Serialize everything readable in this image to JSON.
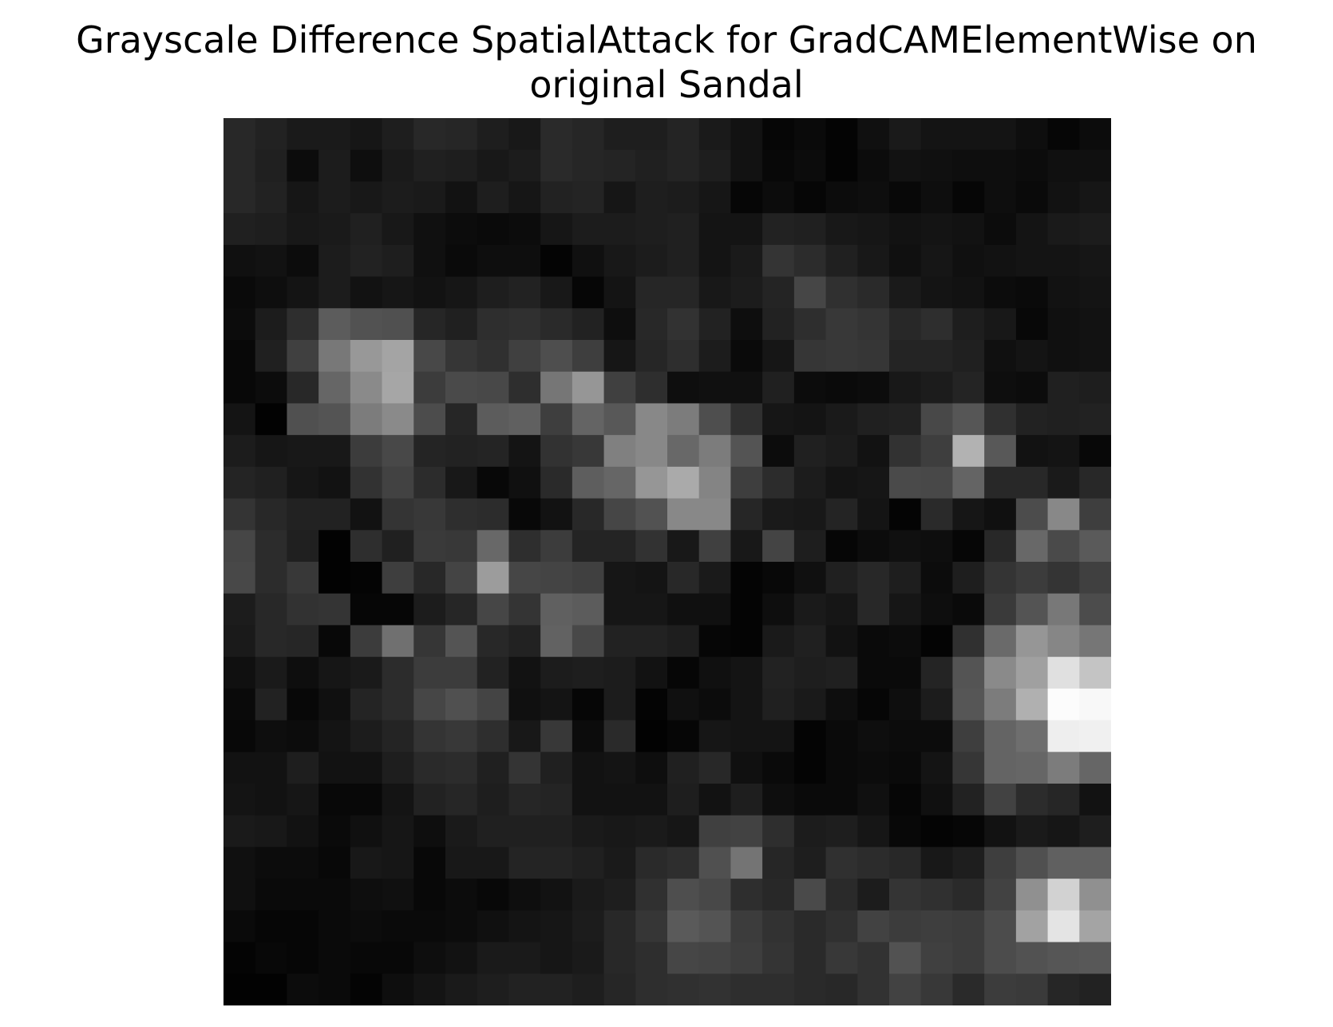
{
  "chart_data": {
    "type": "heatmap",
    "title_lines": [
      "Grayscale Difference SpatialAttack for GradCAMElementWise on",
      "original Sandal"
    ],
    "colormap": "gray",
    "value_range": [
      0,
      255
    ],
    "axes_visible": false,
    "rows": 28,
    "cols": 28,
    "values": [
      [
        40,
        34,
        26,
        26,
        22,
        30,
        40,
        38,
        30,
        24,
        42,
        38,
        30,
        30,
        36,
        26,
        18,
        6,
        10,
        4,
        16,
        26,
        20,
        20,
        20,
        14,
        6,
        12
      ],
      [
        40,
        32,
        12,
        28,
        14,
        26,
        32,
        30,
        24,
        28,
        42,
        38,
        36,
        32,
        36,
        30,
        18,
        8,
        12,
        4,
        12,
        18,
        16,
        14,
        14,
        12,
        16,
        16
      ],
      [
        40,
        34,
        22,
        28,
        24,
        28,
        26,
        18,
        30,
        22,
        34,
        36,
        22,
        30,
        28,
        22,
        6,
        12,
        6,
        12,
        14,
        8,
        14,
        6,
        14,
        10,
        18,
        22
      ],
      [
        32,
        30,
        24,
        26,
        32,
        24,
        16,
        12,
        10,
        12,
        22,
        28,
        28,
        30,
        32,
        20,
        20,
        34,
        32,
        24,
        22,
        18,
        20,
        18,
        12,
        20,
        26,
        28
      ],
      [
        16,
        18,
        12,
        28,
        34,
        30,
        16,
        10,
        14,
        14,
        4,
        16,
        24,
        28,
        32,
        20,
        26,
        52,
        44,
        32,
        24,
        16,
        22,
        16,
        18,
        20,
        20,
        22
      ],
      [
        10,
        14,
        20,
        28,
        18,
        22,
        18,
        22,
        30,
        34,
        24,
        6,
        20,
        38,
        38,
        24,
        28,
        36,
        70,
        48,
        42,
        26,
        20,
        18,
        12,
        10,
        18,
        20
      ],
      [
        12,
        28,
        46,
        92,
        82,
        80,
        38,
        32,
        46,
        48,
        42,
        34,
        14,
        40,
        50,
        34,
        14,
        34,
        46,
        56,
        52,
        40,
        46,
        30,
        24,
        8,
        16,
        18
      ],
      [
        8,
        32,
        64,
        120,
        152,
        164,
        72,
        54,
        48,
        64,
        78,
        62,
        22,
        38,
        46,
        28,
        10,
        22,
        54,
        56,
        54,
        36,
        36,
        32,
        16,
        20,
        16,
        18
      ],
      [
        8,
        12,
        40,
        102,
        138,
        166,
        60,
        74,
        72,
        46,
        118,
        150,
        64,
        46,
        14,
        16,
        16,
        32,
        12,
        10,
        12,
        24,
        28,
        36,
        14,
        12,
        32,
        30
      ],
      [
        20,
        2,
        80,
        84,
        124,
        138,
        76,
        38,
        92,
        96,
        62,
        100,
        88,
        136,
        124,
        78,
        48,
        22,
        20,
        26,
        32,
        34,
        72,
        86,
        48,
        34,
        32,
        34
      ],
      [
        28,
        22,
        24,
        24,
        60,
        72,
        36,
        34,
        36,
        20,
        50,
        56,
        128,
        136,
        104,
        124,
        84,
        12,
        32,
        28,
        18,
        50,
        62,
        178,
        88,
        18,
        20,
        8
      ],
      [
        36,
        32,
        22,
        18,
        50,
        66,
        44,
        24,
        8,
        16,
        42,
        94,
        102,
        150,
        170,
        132,
        62,
        44,
        28,
        20,
        22,
        74,
        72,
        100,
        40,
        40,
        26,
        40
      ],
      [
        52,
        40,
        34,
        34,
        18,
        52,
        56,
        46,
        44,
        8,
        18,
        40,
        70,
        82,
        136,
        136,
        38,
        26,
        24,
        36,
        20,
        4,
        42,
        22,
        16,
        76,
        136,
        62
      ],
      [
        70,
        44,
        32,
        2,
        46,
        32,
        58,
        56,
        104,
        46,
        60,
        36,
        36,
        50,
        24,
        64,
        24,
        68,
        30,
        6,
        12,
        16,
        14,
        6,
        40,
        104,
        74,
        90
      ],
      [
        72,
        44,
        56,
        2,
        4,
        62,
        40,
        68,
        156,
        70,
        68,
        64,
        22,
        20,
        40,
        26,
        4,
        8,
        16,
        32,
        40,
        30,
        12,
        30,
        52,
        60,
        52,
        64
      ],
      [
        28,
        40,
        50,
        52,
        6,
        6,
        28,
        38,
        70,
        52,
        96,
        92,
        22,
        22,
        16,
        16,
        4,
        14,
        26,
        22,
        40,
        22,
        14,
        10,
        58,
        84,
        120,
        76
      ],
      [
        26,
        40,
        38,
        8,
        60,
        112,
        54,
        84,
        40,
        34,
        98,
        72,
        34,
        34,
        30,
        6,
        4,
        26,
        32,
        18,
        10,
        12,
        4,
        48,
        106,
        150,
        134,
        118
      ],
      [
        16,
        26,
        14,
        22,
        26,
        44,
        60,
        60,
        34,
        18,
        28,
        30,
        28,
        18,
        6,
        16,
        20,
        34,
        30,
        32,
        10,
        10,
        36,
        84,
        138,
        160,
        224,
        196
      ],
      [
        10,
        34,
        8,
        16,
        36,
        44,
        70,
        80,
        68,
        16,
        20,
        6,
        28,
        4,
        16,
        12,
        20,
        32,
        26,
        14,
        6,
        14,
        28,
        86,
        124,
        176,
        252,
        248
      ],
      [
        8,
        14,
        12,
        20,
        28,
        36,
        52,
        56,
        46,
        24,
        56,
        12,
        42,
        2,
        6,
        22,
        20,
        20,
        4,
        10,
        14,
        12,
        12,
        62,
        100,
        110,
        238,
        240
      ],
      [
        18,
        18,
        30,
        18,
        18,
        30,
        42,
        44,
        32,
        52,
        32,
        18,
        20,
        14,
        32,
        40,
        16,
        10,
        4,
        10,
        12,
        10,
        20,
        54,
        100,
        102,
        124,
        102
      ],
      [
        20,
        18,
        22,
        8,
        8,
        20,
        34,
        38,
        30,
        38,
        36,
        18,
        18,
        18,
        30,
        18,
        30,
        14,
        10,
        10,
        16,
        6,
        16,
        34,
        66,
        44,
        38,
        18
      ],
      [
        26,
        24,
        18,
        10,
        16,
        22,
        14,
        26,
        32,
        32,
        32,
        26,
        24,
        26,
        22,
        64,
        66,
        46,
        28,
        30,
        22,
        8,
        4,
        6,
        18,
        26,
        22,
        30
      ],
      [
        16,
        12,
        12,
        8,
        24,
        22,
        8,
        24,
        24,
        36,
        36,
        32,
        26,
        42,
        46,
        80,
        116,
        38,
        30,
        48,
        44,
        40,
        24,
        30,
        62,
        80,
        96,
        96
      ],
      [
        16,
        10,
        10,
        10,
        14,
        16,
        8,
        12,
        8,
        14,
        18,
        26,
        30,
        48,
        78,
        72,
        46,
        40,
        74,
        42,
        28,
        52,
        48,
        42,
        66,
        144,
        210,
        144
      ],
      [
        10,
        6,
        6,
        10,
        12,
        10,
        10,
        12,
        16,
        20,
        22,
        28,
        40,
        54,
        90,
        84,
        60,
        50,
        42,
        48,
        66,
        60,
        62,
        60,
        76,
        162,
        228,
        164
      ],
      [
        4,
        8,
        6,
        10,
        8,
        8,
        14,
        18,
        26,
        26,
        22,
        26,
        40,
        46,
        70,
        68,
        62,
        52,
        42,
        56,
        50,
        82,
        64,
        60,
        76,
        82,
        86,
        88
      ],
      [
        2,
        2,
        12,
        10,
        4,
        14,
        20,
        26,
        30,
        34,
        34,
        30,
        38,
        46,
        48,
        50,
        46,
        46,
        42,
        40,
        50,
        66,
        56,
        42,
        60,
        58,
        38,
        34
      ]
    ]
  }
}
